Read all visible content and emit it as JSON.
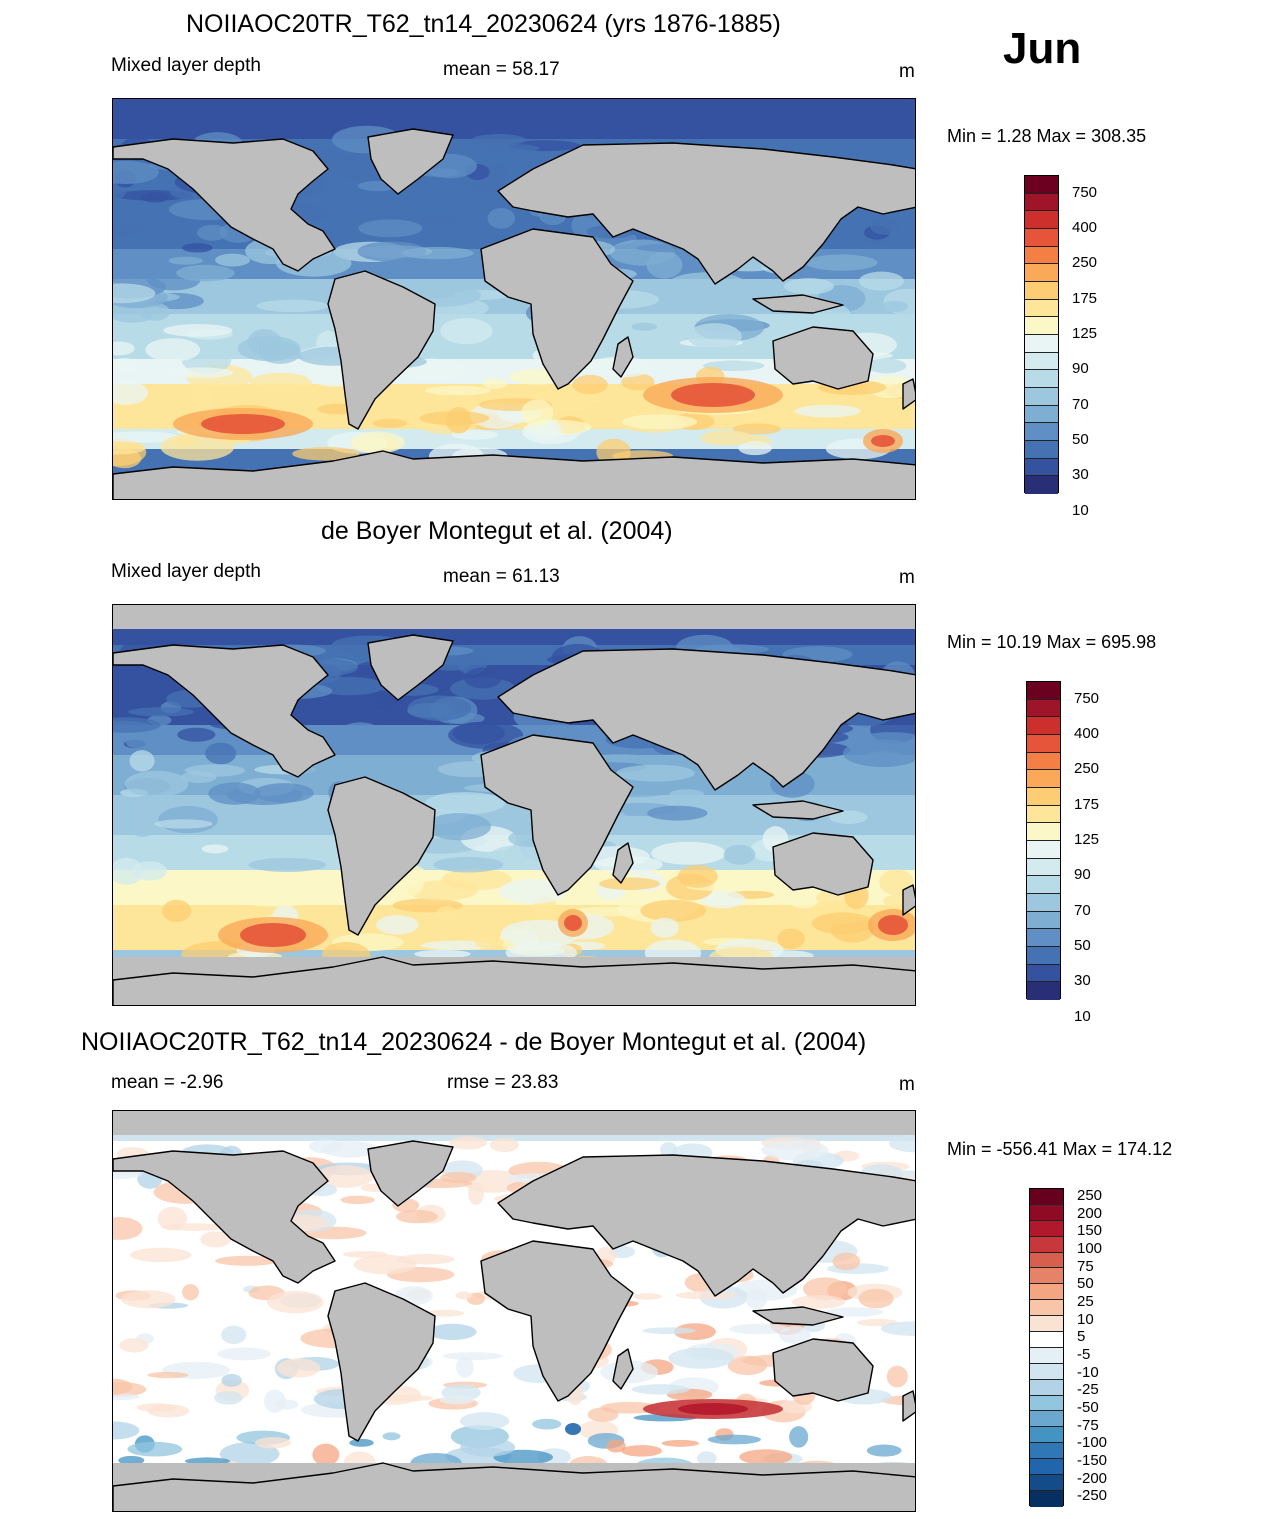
{
  "month": "Jun",
  "panels": [
    {
      "title": "NOIIAOC20TR_T62_tn14_20230624 (yrs 1876-1885)",
      "left_label": "Mixed layer depth",
      "center_label": "mean =  58.17",
      "units": "m",
      "minmax": "Min =   1.28 Max = 308.35",
      "colorbar": {
        "labels": [
          "750",
          "400",
          "250",
          "175",
          "125",
          "90",
          "70",
          "50",
          "30",
          "10"
        ],
        "colors": [
          "#6b0020",
          "#9e1428",
          "#cc2f2c",
          "#e6553a",
          "#f47f45",
          "#f9a957",
          "#fccd72",
          "#fde69a",
          "#fbf7c6",
          "#e9f5f4",
          "#d3ebef",
          "#b8dbe8",
          "#9cc7df",
          "#7faed3",
          "#5f8fc4",
          "#4572b3",
          "#3452a0",
          "#282f76"
        ]
      },
      "map_style": "model"
    },
    {
      "title": "de Boyer Montegut et al. (2004)",
      "left_label": "Mixed layer depth",
      "center_label": "mean =  61.13",
      "units": "m",
      "minmax": "Min =  10.19 Max = 695.98",
      "colorbar": {
        "labels": [
          "750",
          "400",
          "250",
          "175",
          "125",
          "90",
          "70",
          "50",
          "30",
          "10"
        ],
        "colors": [
          "#6b0020",
          "#9e1428",
          "#cc2f2c",
          "#e6553a",
          "#f47f45",
          "#f9a957",
          "#fccd72",
          "#fde69a",
          "#fbf7c6",
          "#e9f5f4",
          "#d3ebef",
          "#b8dbe8",
          "#9cc7df",
          "#7faed3",
          "#5f8fc4",
          "#4572b3",
          "#3452a0",
          "#282f76"
        ]
      },
      "map_style": "obs"
    },
    {
      "title": "NOIIAOC20TR_T62_tn14_20230624 - de Boyer Montegut et al. (2004)",
      "left_label": "mean =  -2.96",
      "center_label": "rmse =  23.83",
      "units": "m",
      "minmax": "Min = -556.41 Max = 174.12",
      "colorbar": {
        "labels": [
          "250",
          "200",
          "150",
          "100",
          "75",
          "50",
          "25",
          "10",
          "5",
          "-5",
          "-10",
          "-25",
          "-50",
          "-75",
          "-100",
          "-150",
          "-200",
          "-250"
        ],
        "colors": [
          "#67001f",
          "#8f0a25",
          "#b2182b",
          "#c7373c",
          "#d6604d",
          "#e58267",
          "#f4a582",
          "#f8c5a8",
          "#fbe3d4",
          "#ffffff",
          "#e4eff6",
          "#d1e5f0",
          "#b2d3e7",
          "#92c5de",
          "#6aa8d0",
          "#4393c3",
          "#2f77b5",
          "#2166ac",
          "#144c89",
          "#053061"
        ]
      },
      "map_style": "diff"
    }
  ]
}
